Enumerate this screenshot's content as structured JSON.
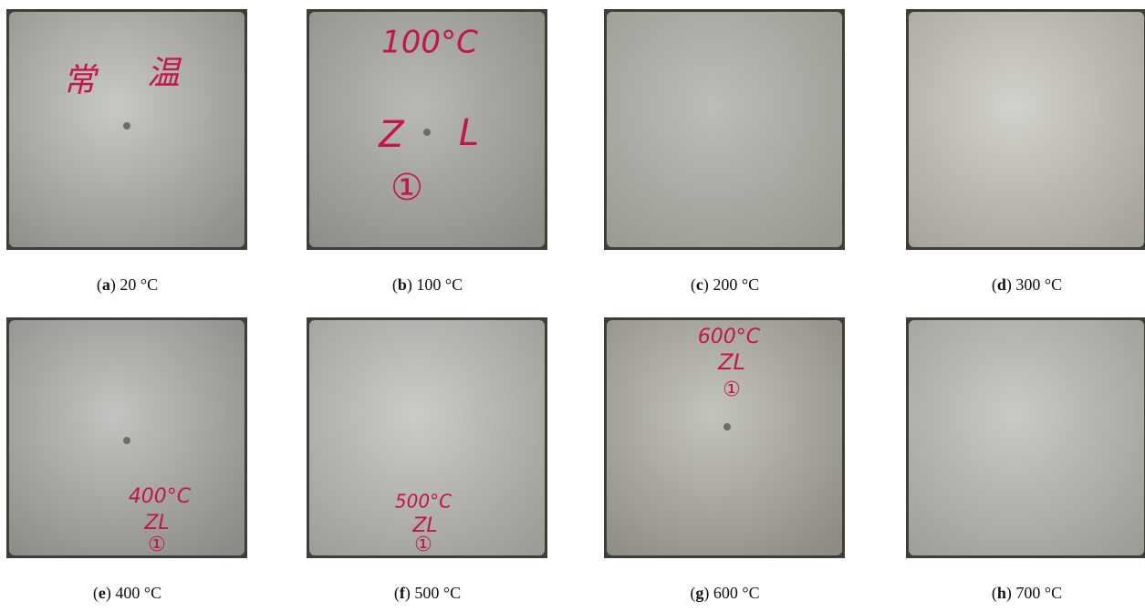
{
  "panels": [
    {
      "caption": [
        "(",
        "a",
        ") 20 °C"
      ],
      "handwriting": [
        "常",
        "温"
      ]
    },
    {
      "caption": [
        "(",
        "b",
        ") 100 °C"
      ],
      "handwriting": [
        "100°C",
        "Z",
        "L",
        "①"
      ]
    },
    {
      "caption": [
        "(",
        "c",
        ") 200 °C"
      ],
      "handwriting": []
    },
    {
      "caption": [
        "(",
        "d",
        ") 300 °C"
      ],
      "handwriting": []
    },
    {
      "caption": [
        "(",
        "e",
        ") 400 °C"
      ],
      "handwriting": [
        "400°C",
        "ZL",
        "①"
      ]
    },
    {
      "caption": [
        "(",
        "f",
        ") 500 °C"
      ],
      "handwriting": [
        "500°C",
        "ZL",
        "①"
      ]
    },
    {
      "caption": [
        "(",
        "g",
        ") 600 °C"
      ],
      "handwriting": [
        "600°C",
        "ZL",
        "①"
      ]
    },
    {
      "caption": [
        "(",
        "h",
        ") 700 °C"
      ],
      "handwriting": []
    }
  ]
}
